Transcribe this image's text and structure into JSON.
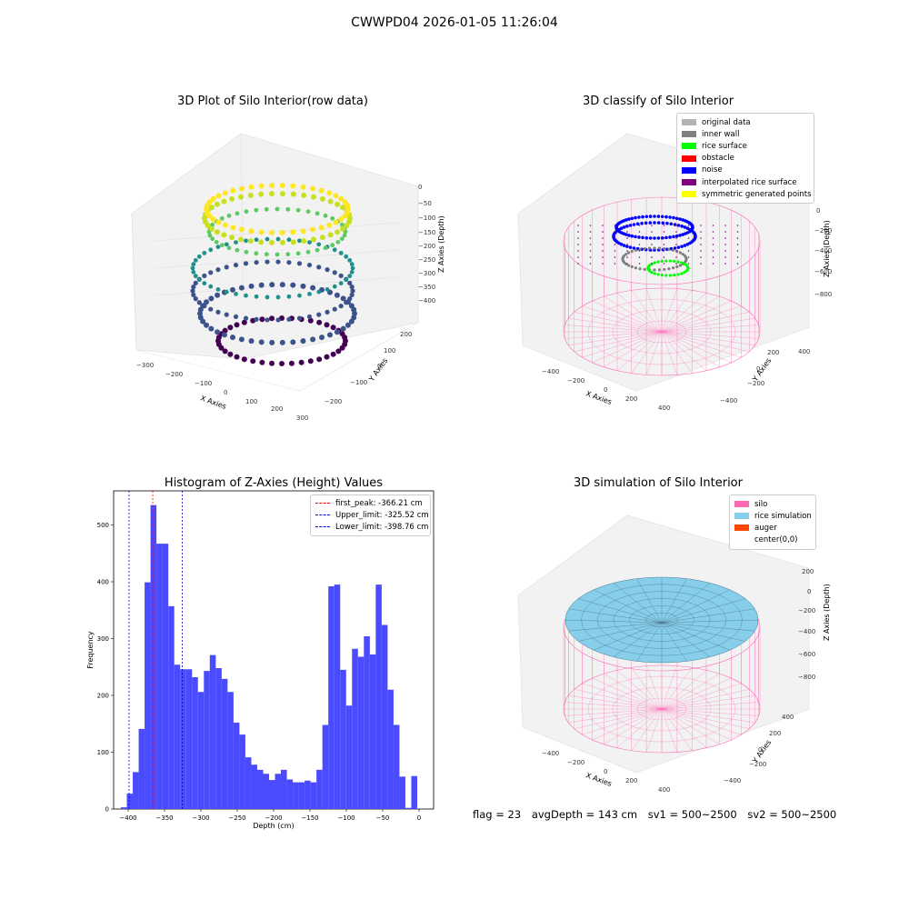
{
  "figure": {
    "suptitle": "CWWPD04 2026-01-05 11:26:04"
  },
  "chart_data": [
    {
      "type": "scatter",
      "subtype": "3d-scatter",
      "title": "3D Plot of Silo Interior(row data)",
      "xlabel": "X Axies",
      "ylabel": "Y Axies",
      "zlabel": "Z Axies (Depth)",
      "x_ticks": [
        "−300",
        "−200",
        "−100",
        "0",
        "100",
        "200",
        "300"
      ],
      "y_ticks": [
        "−200",
        "−100",
        "0",
        "100",
        "200"
      ],
      "z_ticks": [
        "0",
        "−50",
        "−100",
        "−150",
        "−200",
        "−250",
        "−300",
        "−350",
        "−400"
      ],
      "colormap": "viridis",
      "grid": true
    },
    {
      "type": "scatter",
      "subtype": "3d-scatter",
      "title": "3D classify of Silo Interior",
      "xlabel": "X Axies",
      "ylabel": "Y Axies",
      "zlabel": "Z Axies (Depth)",
      "x_ticks": [
        "−400",
        "−200",
        "0",
        "200",
        "400"
      ],
      "y_ticks": [
        "−400",
        "−200",
        "0",
        "200",
        "400"
      ],
      "z_ticks": [
        "0",
        "−200",
        "−400",
        "−600",
        "−800"
      ],
      "legend_position": "top-right",
      "legend": [
        {
          "label": "original data",
          "color": "#b3b3b3"
        },
        {
          "label": "inner wall",
          "color": "#808080"
        },
        {
          "label": "rice surface",
          "color": "#00ff00"
        },
        {
          "label": "obstacle",
          "color": "#ff0000"
        },
        {
          "label": "noise",
          "color": "#0000ff"
        },
        {
          "label": "interpolated rice surface",
          "color": "#800080"
        },
        {
          "label": "symmetric generated points",
          "color": "#ffff00"
        }
      ],
      "wire_color": "#ff69b4",
      "grid": true
    },
    {
      "type": "bar",
      "subtype": "histogram",
      "title": "Histogram of Z-Axies (Height) Values",
      "xlabel": "Depth (cm)",
      "ylabel": "Frequency",
      "xlim": [
        -420,
        20
      ],
      "ylim": [
        0,
        560
      ],
      "x_ticks": [
        -400,
        -350,
        -300,
        -250,
        -200,
        -150,
        -100,
        -50,
        0
      ],
      "y_ticks": [
        0,
        100,
        200,
        300,
        400,
        500
      ],
      "bar_color": "#4a4aff",
      "bin_width": 8.15,
      "bin_start": -410,
      "values": [
        3,
        27,
        65,
        141,
        399,
        535,
        467,
        467,
        357,
        254,
        246,
        246,
        232,
        206,
        243,
        271,
        248,
        229,
        206,
        152,
        131,
        91,
        78,
        69,
        62,
        51,
        62,
        69,
        52,
        47,
        47,
        50,
        47,
        69,
        148,
        392,
        395,
        245,
        182,
        282,
        268,
        304,
        272,
        395,
        324,
        210,
        148,
        57,
        2,
        58
      ],
      "vlines": [
        {
          "x": -366.21,
          "color": "#ff0000",
          "label": "first_peak: -366.21 cm"
        },
        {
          "x": -325.52,
          "color": "#0000cc",
          "label": "Upper_limit: -325.52 cm"
        },
        {
          "x": -398.76,
          "color": "#0000cc",
          "label": "Lower_limit: -398.76 cm"
        }
      ],
      "legend_position": "top-right",
      "grid": false
    },
    {
      "type": "scatter",
      "subtype": "3d-surface",
      "title": "3D simulation of Silo Interior",
      "xlabel": "X Axies",
      "ylabel": "Y Axies",
      "zlabel": "Z Axies (Depth)",
      "x_ticks": [
        "−400",
        "−200",
        "0",
        "200",
        "400"
      ],
      "y_ticks": [
        "−400",
        "−200",
        "0",
        "200",
        "400"
      ],
      "z_ticks": [
        "200",
        "0",
        "−200",
        "−400",
        "−600",
        "−800"
      ],
      "legend_position": "top-right",
      "legend": [
        {
          "label": "silo",
          "color": "#ff69b4"
        },
        {
          "label": "rice simulation",
          "color": "#87ceeb"
        },
        {
          "label": "auger",
          "color": "#ff4500"
        },
        {
          "label": "center(0,0)",
          "color": "#ffffff"
        }
      ],
      "grid": true
    }
  ],
  "footer": {
    "flag": "flag = 23",
    "avg": "avgDepth = 143 cm",
    "sv1": "sv1 = 500~2500",
    "sv2": "sv2 = 500~2500"
  }
}
